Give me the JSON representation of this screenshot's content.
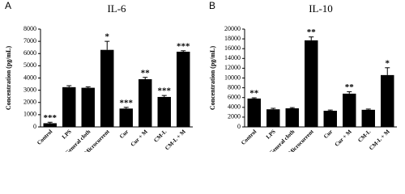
{
  "chart_data": [
    {
      "type": "bar",
      "panel_label": "A",
      "title": "IL-6",
      "y_label": "Concentration (pg/mL)",
      "categories": [
        "Control",
        "LPS",
        "General cloth",
        "Microcurrent",
        "Cur",
        "Cur + M",
        "CM-L",
        "CM-L + M"
      ],
      "values": [
        300,
        3250,
        3200,
        6300,
        1500,
        3900,
        2450,
        6150
      ],
      "errors": [
        80,
        120,
        80,
        700,
        100,
        150,
        120,
        80
      ],
      "annotations": [
        "***",
        null,
        null,
        "*",
        "***",
        "**",
        "***",
        "***"
      ],
      "color": "#000000",
      "ylim": [
        0,
        8000
      ],
      "yticks": [
        0,
        1000,
        2000,
        3000,
        4000,
        5000,
        6000,
        7000,
        8000
      ]
    },
    {
      "type": "bar",
      "panel_label": "B",
      "title": "IL-10",
      "y_label": "Concentration (pg/mL)",
      "categories": [
        "Control",
        "LPS",
        "General cloth",
        "Microcurrent",
        "Cur",
        "Cur + M",
        "CM-L",
        "CM-L + M"
      ],
      "values": [
        5800,
        3600,
        3800,
        17700,
        3300,
        6800,
        3500,
        10600
      ],
      "errors": [
        150,
        200,
        150,
        700,
        150,
        400,
        150,
        1500
      ],
      "annotations": [
        "**",
        null,
        null,
        "**",
        null,
        "**",
        null,
        "*"
      ],
      "color": "#000000",
      "ylim": [
        0,
        20000
      ],
      "yticks": [
        0,
        2000,
        4000,
        6000,
        8000,
        10000,
        12000,
        14000,
        16000,
        18000,
        20000
      ]
    }
  ]
}
